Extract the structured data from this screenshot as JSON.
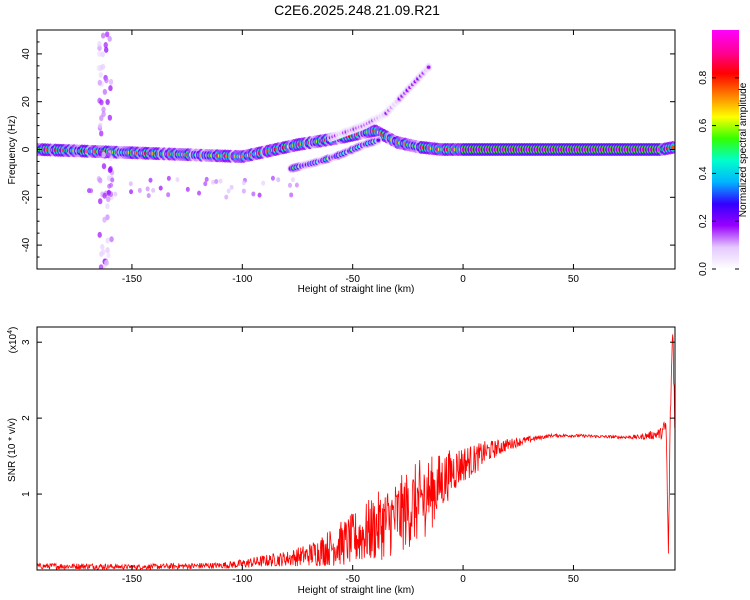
{
  "title": "C2E6.2025.248.21.09.R21",
  "colorbar": {
    "label": "Normalized spectral amplitude",
    "ticks": [
      "0.0",
      "0.2",
      "0.4",
      "0.6",
      "0.8"
    ],
    "tick_values": [
      0,
      0.2,
      0.4,
      0.6,
      0.8
    ],
    "range": [
      0,
      1
    ],
    "colors": [
      "#ffffff",
      "#e4c9ff",
      "#9900ff",
      "#3300ff",
      "#00b4ff",
      "#00ffcc",
      "#33ff00",
      "#ffff00",
      "#ff7f00",
      "#ff0000",
      "#ff0099",
      "#ff00ff"
    ]
  },
  "chart_data": [
    {
      "type": "heatmap",
      "title": "",
      "xlabel": "Height of straight line (km)",
      "ylabel": "Frequency (Hz)",
      "xlim": [
        -193,
        96
      ],
      "ylim": [
        -50,
        50
      ],
      "x_ticks": [
        -150,
        -100,
        -50,
        0,
        50
      ],
      "x_tick_labels": [
        "-150",
        "-100",
        "-50",
        "0",
        "50"
      ],
      "y_ticks": [
        -40,
        -20,
        0,
        20,
        40
      ],
      "y_tick_labels": [
        "-40",
        "-20",
        "0",
        "20",
        "40"
      ],
      "features": [
        {
          "desc": "main spectral line",
          "x": [
            -193,
            -130,
            -100,
            -75,
            -55,
            -40,
            -30,
            -20,
            -10,
            0,
            90,
            96
          ],
          "y": [
            0,
            -2,
            -3,
            2,
            5,
            8,
            3,
            1,
            0,
            0,
            0,
            1
          ],
          "peak_amplitude": 0.95
        },
        {
          "desc": "descending branch",
          "x": [
            -78,
            -65,
            -55,
            -45,
            -38
          ],
          "y": [
            -8,
            -5,
            -2,
            2,
            4
          ],
          "peak_amplitude": 0.6
        },
        {
          "desc": "rising faint branch",
          "x": [
            -60,
            -45,
            -35,
            -25,
            -15
          ],
          "y": [
            5,
            10,
            15,
            25,
            35
          ],
          "peak_amplitude": 0.2
        },
        {
          "desc": "vertical scatter",
          "x": [
            -162,
            -162
          ],
          "y": [
            -50,
            50
          ],
          "peak_amplitude": 0.15
        }
      ]
    },
    {
      "type": "line",
      "title": "",
      "xlabel": "Height of straight line (km)",
      "ylabel": "SNR (10 * v/v)",
      "y_multiplier": "(x10^4)",
      "xlim": [
        -193,
        96
      ],
      "ylim": [
        0,
        3.2
      ],
      "x_ticks": [
        -150,
        -100,
        -50,
        0,
        50
      ],
      "x_tick_labels": [
        "-150",
        "-100",
        "-50",
        "0",
        "50"
      ],
      "y_ticks": [
        1,
        2,
        3
      ],
      "y_tick_labels": [
        "1",
        "2",
        "3"
      ],
      "color": "#ff0000",
      "x": [
        -193,
        -170,
        -150,
        -130,
        -110,
        -100,
        -90,
        -80,
        -70,
        -60,
        -50,
        -40,
        -30,
        -20,
        -15,
        -10,
        -5,
        0,
        5,
        10,
        20,
        30,
        40,
        50,
        60,
        70,
        80,
        90,
        92,
        93,
        94,
        95,
        96
      ],
      "y": [
        0.05,
        0.05,
        0.04,
        0.05,
        0.06,
        0.08,
        0.12,
        0.15,
        0.2,
        0.3,
        0.4,
        0.55,
        0.7,
        0.9,
        1.0,
        1.15,
        1.3,
        1.4,
        1.45,
        1.55,
        1.65,
        1.72,
        1.77,
        1.77,
        1.76,
        1.75,
        1.75,
        1.8,
        1.9,
        0.2,
        2.2,
        3.2,
        1.9
      ],
      "noise_amplitude": [
        0.04,
        0.04,
        0.03,
        0.04,
        0.04,
        0.06,
        0.08,
        0.1,
        0.15,
        0.25,
        0.35,
        0.45,
        0.5,
        0.55,
        0.5,
        0.4,
        0.3,
        0.25,
        0.2,
        0.15,
        0.08,
        0.04,
        0.02,
        0.02,
        0.02,
        0.02,
        0.03,
        0.08,
        0.15,
        0.1,
        0.2,
        0.3,
        0.2
      ]
    }
  ]
}
